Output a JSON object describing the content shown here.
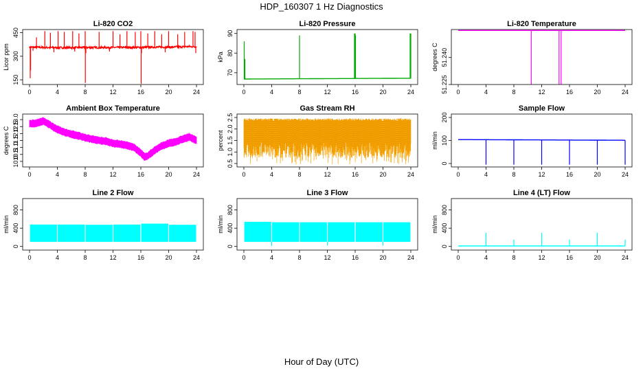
{
  "figure": {
    "title": "HDP_160307  1 Hz Diagnostics",
    "xlabel": "Hour of Day (UTC)"
  },
  "chart_data": [
    {
      "id": "co2",
      "type": "line",
      "title": "Li-820 CO2",
      "ylabel": "Licor ppm",
      "color": "#ff0000",
      "xlim": [
        0,
        24
      ],
      "ylim": [
        120,
        470
      ],
      "xticks": [
        "0",
        "4",
        "8",
        "12",
        "16",
        "20",
        "24"
      ],
      "yticks": [
        "150",
        "300",
        "450"
      ],
      "baseline": [
        [
          0,
          358
        ],
        [
          2,
          356
        ],
        [
          4,
          355
        ],
        [
          6,
          354
        ],
        [
          8,
          356
        ],
        [
          10,
          355
        ],
        [
          12,
          356
        ],
        [
          14,
          356
        ],
        [
          16,
          356
        ],
        [
          18,
          358
        ],
        [
          20,
          358
        ],
        [
          22,
          360
        ],
        [
          23,
          362
        ],
        [
          24,
          360
        ]
      ],
      "noise": 6,
      "spikes": [
        [
          0.1,
          160
        ],
        [
          0.15,
          210
        ],
        [
          1.0,
          420
        ],
        [
          2.2,
          460
        ],
        [
          3.0,
          450
        ],
        [
          4.1,
          460
        ],
        [
          5.0,
          455
        ],
        [
          6.2,
          460
        ],
        [
          7.1,
          445
        ],
        [
          8.0,
          460
        ],
        [
          8.02,
          130
        ],
        [
          10.0,
          455
        ],
        [
          12.0,
          460
        ],
        [
          13.0,
          440
        ],
        [
          14.0,
          460
        ],
        [
          15.2,
          455
        ],
        [
          16.0,
          460
        ],
        [
          16.05,
          125
        ],
        [
          17.0,
          445
        ],
        [
          18.0,
          460
        ],
        [
          19.0,
          440
        ],
        [
          20.0,
          460
        ],
        [
          21.3,
          440
        ],
        [
          22.3,
          455
        ],
        [
          23.5,
          460
        ],
        [
          23.8,
          455
        ]
      ],
      "dips": [
        [
          0.5,
          335
        ],
        [
          3.5,
          325
        ],
        [
          6.5,
          330
        ],
        [
          8.1,
          320
        ],
        [
          11.5,
          330
        ],
        [
          16.1,
          320
        ],
        [
          19.5,
          325
        ],
        [
          23.9,
          320
        ]
      ]
    },
    {
      "id": "pressure",
      "type": "line",
      "title": "Li-820 Pressure",
      "ylabel": "kPa",
      "color": "#00aa00",
      "xlim": [
        0,
        24
      ],
      "ylim": [
        64,
        92
      ],
      "xticks": [
        "0",
        "4",
        "8",
        "12",
        "16",
        "20",
        "24"
      ],
      "yticks": [
        "70",
        "80",
        "90"
      ],
      "baseline": [
        [
          0,
          66.8
        ],
        [
          24,
          67.2
        ]
      ],
      "spikes": [
        [
          0.05,
          86
        ],
        [
          0.15,
          77
        ],
        [
          8.0,
          89
        ],
        [
          15.9,
          90
        ],
        [
          16.0,
          90
        ],
        [
          16.05,
          89
        ],
        [
          23.9,
          90
        ],
        [
          24.0,
          90
        ]
      ]
    },
    {
      "id": "temperature",
      "type": "line",
      "title": "Li-820 Temperature",
      "ylabel": "degrees C",
      "color": "#ff00ff",
      "xlim": [
        0,
        24
      ],
      "ylim": [
        51.225,
        51.2555
      ],
      "xticks": [
        "0",
        "4",
        "8",
        "12",
        "16",
        "20",
        "24"
      ],
      "yticks": [
        "51.225",
        "51.240"
      ],
      "baseline": [
        [
          0,
          51.255
        ],
        [
          24,
          51.255
        ]
      ],
      "drops": [
        [
          10.5,
          51.225
        ],
        [
          14.5,
          51.225
        ],
        [
          14.8,
          51.225
        ]
      ]
    },
    {
      "id": "ambient",
      "type": "band",
      "title": "Ambient Box Temperature",
      "ylabel": "degrees C",
      "color": "#ff00ff",
      "xlim": [
        0,
        24
      ],
      "ylim": [
        9.6,
        13.4
      ],
      "xticks": [
        "0",
        "4",
        "8",
        "12",
        "16",
        "20",
        "24"
      ],
      "yticks": [
        "10.0",
        "10.5",
        "11.0",
        "11.5",
        "12.0",
        "12.5",
        "13.0"
      ],
      "center": [
        [
          0,
          12.7
        ],
        [
          1,
          12.75
        ],
        [
          2,
          12.9
        ],
        [
          3,
          12.6
        ],
        [
          4,
          12.3
        ],
        [
          5,
          12.1
        ],
        [
          6,
          11.95
        ],
        [
          7,
          11.85
        ],
        [
          8,
          11.7
        ],
        [
          9,
          11.6
        ],
        [
          10,
          11.5
        ],
        [
          11,
          11.45
        ],
        [
          12,
          11.3
        ],
        [
          13,
          11.25
        ],
        [
          14,
          11.15
        ],
        [
          15,
          11.0
        ],
        [
          16,
          10.6
        ],
        [
          16.6,
          10.3
        ],
        [
          17,
          10.4
        ],
        [
          18,
          10.8
        ],
        [
          19,
          11.1
        ],
        [
          20,
          11.3
        ],
        [
          21,
          11.4
        ],
        [
          22,
          11.6
        ],
        [
          23,
          11.75
        ],
        [
          24,
          11.5
        ]
      ],
      "halfwidth": 0.2
    },
    {
      "id": "rh",
      "type": "noise",
      "title": "Gas Stream RH",
      "ylabel": "percent",
      "color": "#ffa500",
      "color2": "#b8860b",
      "xlim": [
        0,
        24
      ],
      "ylim": [
        0.35,
        2.65
      ],
      "xticks": [
        "0",
        "4",
        "8",
        "12",
        "16",
        "20",
        "24"
      ],
      "yticks": [
        "0.5",
        "1.0",
        "1.5",
        "2.0",
        "2.5"
      ],
      "top": 2.4,
      "bottom": 0.75,
      "low": 0.45
    },
    {
      "id": "sample",
      "type": "line",
      "title": "Sample Flow",
      "ylabel": "ml/min",
      "color": "#0000ff",
      "xlim": [
        0,
        24
      ],
      "ylim": [
        -15,
        215
      ],
      "xticks": [
        "0",
        "4",
        "8",
        "12",
        "16",
        "20",
        "24"
      ],
      "yticks": [
        "0",
        "100",
        "200"
      ],
      "baseline": [
        [
          0,
          104
        ],
        [
          24,
          101
        ]
      ],
      "dips": [
        [
          4,
          -5
        ],
        [
          8,
          -5
        ],
        [
          12,
          -5
        ],
        [
          16,
          -5
        ],
        [
          20,
          -5
        ],
        [
          24,
          -5
        ]
      ]
    },
    {
      "id": "line2",
      "type": "block",
      "title": "Line 2 Flow",
      "ylabel": "ml/min",
      "color": "#00ffff",
      "xlim": [
        0,
        24
      ],
      "ylim": [
        -80,
        1050
      ],
      "xticks": [
        "0",
        "4",
        "8",
        "12",
        "16",
        "20",
        "24"
      ],
      "yticks": [
        "0",
        "400",
        "800"
      ],
      "segments": [
        [
          0,
          4,
          100,
          480
        ],
        [
          4,
          8,
          100,
          480
        ],
        [
          8,
          12,
          100,
          475
        ],
        [
          12,
          16,
          100,
          480
        ],
        [
          16,
          20,
          100,
          500
        ],
        [
          20,
          24,
          100,
          475
        ]
      ]
    },
    {
      "id": "line3",
      "type": "block",
      "title": "Line 3 Flow",
      "ylabel": "ml/min",
      "color": "#00ffff",
      "xlim": [
        0,
        24
      ],
      "ylim": [
        -80,
        1050
      ],
      "xticks": [
        "0",
        "4",
        "8",
        "12",
        "16",
        "20",
        "24"
      ],
      "yticks": [
        "0",
        "400",
        "800"
      ],
      "segments": [
        [
          0,
          4,
          100,
          540
        ],
        [
          4,
          8,
          100,
          530
        ],
        [
          8,
          12,
          100,
          530
        ],
        [
          12,
          16,
          100,
          530
        ],
        [
          16,
          20,
          100,
          530
        ],
        [
          20,
          24,
          100,
          530
        ]
      ],
      "dips": [
        [
          4,
          10
        ],
        [
          12,
          20
        ],
        [
          20,
          15
        ]
      ]
    },
    {
      "id": "line4",
      "type": "line",
      "title": "Line 4 (LT) Flow",
      "ylabel": "ml/min",
      "color": "#00ffff",
      "xlim": [
        0,
        24
      ],
      "ylim": [
        -80,
        1050
      ],
      "xticks": [
        "0",
        "4",
        "8",
        "12",
        "16",
        "20",
        "24"
      ],
      "yticks": [
        "0",
        "400",
        "800"
      ],
      "baseline": [
        [
          0,
          10
        ],
        [
          24,
          10
        ]
      ],
      "spikes": [
        [
          4,
          300
        ],
        [
          8,
          150
        ],
        [
          12,
          300
        ],
        [
          16,
          150
        ],
        [
          20,
          300
        ],
        [
          24,
          150
        ]
      ]
    }
  ]
}
